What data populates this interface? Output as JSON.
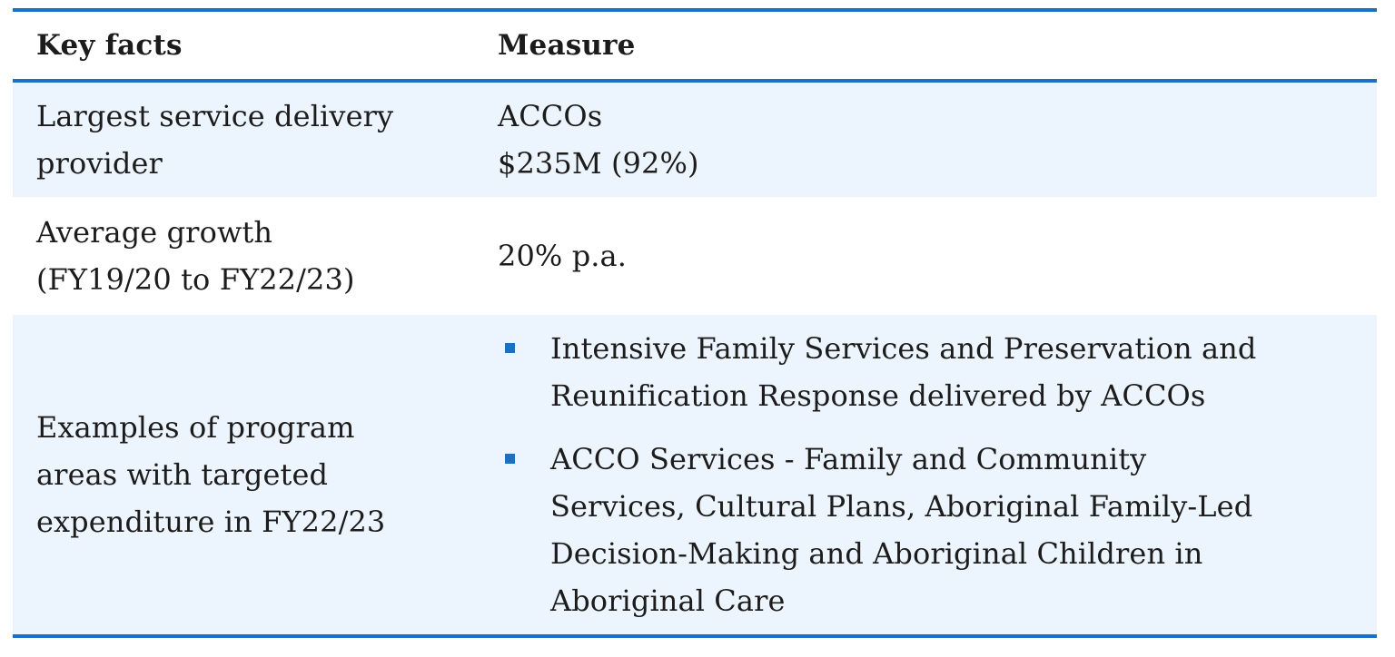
{
  "table": {
    "headers": {
      "key_facts": "Key facts",
      "measure": "Measure"
    },
    "rows": [
      {
        "key": [
          "Largest service delivery",
          "provider"
        ],
        "measure": [
          "ACCOs",
          "$235M (92%)"
        ]
      },
      {
        "key": [
          "Average growth",
          "(FY19/20 to FY22/23)"
        ],
        "measure": [
          "20% p.a."
        ]
      },
      {
        "key": [
          "Examples of program",
          "areas with targeted",
          "expenditure in FY22/23"
        ],
        "measure_bullets": [
          [
            "Intensive Family Services and Preservation and",
            "Reunification Response delivered by ACCOs"
          ],
          [
            "ACCO Services - Family and Community",
            "Services, Cultural Plans, Aboriginal Family-Led",
            "Decision-Making and Aboriginal Children in",
            "Aboriginal Care"
          ]
        ]
      }
    ]
  },
  "colors": {
    "rule": "#1d6fc1",
    "shaded_row": "#ecf4fd"
  },
  "icons": {
    "bullet": "square-bullet-icon"
  }
}
